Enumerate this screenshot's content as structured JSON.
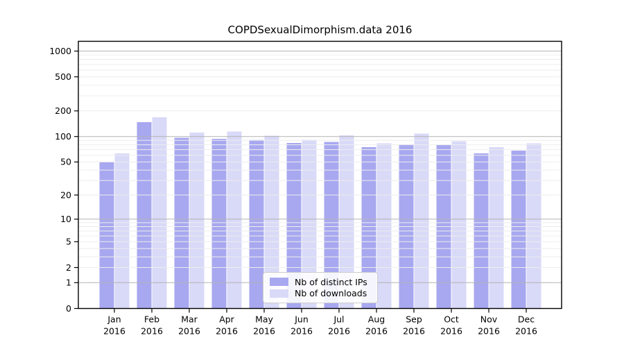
{
  "chart_data": {
    "type": "bar",
    "title": "COPDSexualDimorphism.data 2016",
    "x_categories": [
      "Jan",
      "Feb",
      "Mar",
      "Apr",
      "May",
      "Jun",
      "Jul",
      "Aug",
      "Sep",
      "Oct",
      "Nov",
      "Dec"
    ],
    "x_year": "2016",
    "series": [
      {
        "name": "Nb of distinct IPs",
        "color": "#a8a8f0",
        "values": [
          50,
          147,
          97,
          94,
          91,
          84,
          86,
          75,
          81,
          79,
          63,
          68
        ]
      },
      {
        "name": "Nb of downloads",
        "color": "#d9d9f8",
        "values": [
          63,
          169,
          111,
          115,
          102,
          91,
          103,
          83,
          108,
          88,
          75,
          83
        ]
      }
    ],
    "y_scale": "log1p",
    "y_ticks": [
      0,
      1,
      2,
      5,
      10,
      20,
      50,
      100,
      200,
      500,
      1000
    ],
    "y_max": 1300,
    "grid": {
      "major_values": [
        1,
        10,
        100,
        1000
      ],
      "major_color": "#b3b3b3",
      "minor_color": "#ededed"
    },
    "legend_position": "inside-bottom-center",
    "axis_color": "#000000"
  }
}
